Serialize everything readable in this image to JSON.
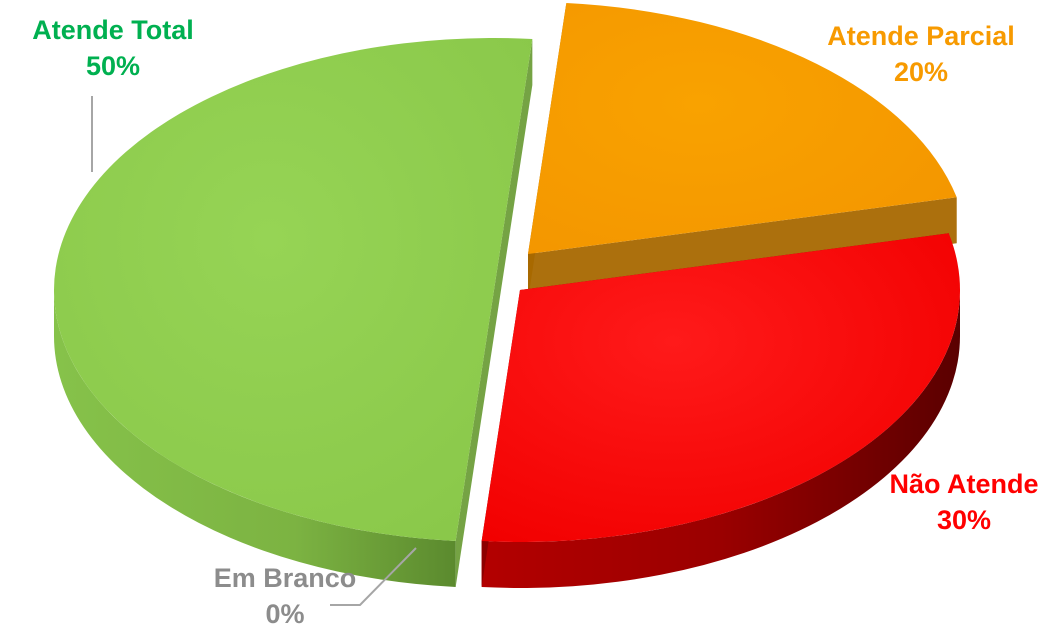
{
  "chart_data": {
    "type": "pie",
    "title": "",
    "slices": [
      {
        "label": "Atende Total",
        "value": 50,
        "percent_label": "50%",
        "color": "#92d050",
        "side_color": "#6e9e3a",
        "label_color": "#00b050"
      },
      {
        "label": "Atende Parcial",
        "value": 20,
        "percent_label": "20%",
        "color": "#f79a00",
        "side_color": "#a86800",
        "label_color": "#f79a00"
      },
      {
        "label": "Não Atende",
        "value": 30,
        "percent_label": "30%",
        "color": "#ff0000",
        "side_color": "#8b0000",
        "label_color": "#ff0000"
      },
      {
        "label": "Em Branco",
        "value": 0,
        "percent_label": "0%",
        "color": "#a6a6a6",
        "side_color": "#7f7f7f",
        "label_color": "#8c8c8c"
      }
    ],
    "legend": "none",
    "style": "3d-exploded"
  }
}
